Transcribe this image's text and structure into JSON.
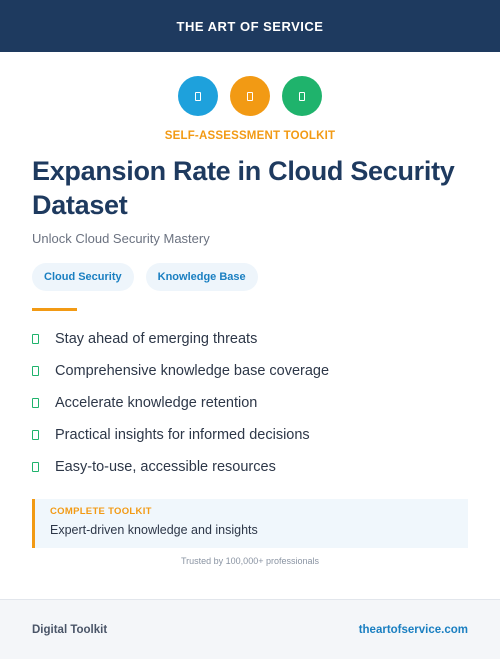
{
  "header": {
    "brand": "THE ART OF SERVICE"
  },
  "icons": [
    {
      "name": "document-icon",
      "color": "#1ea1dc"
    },
    {
      "name": "document-icon",
      "color": "#f29a14"
    },
    {
      "name": "document-icon",
      "color": "#1fb36c"
    }
  ],
  "eyebrow": "SELF-ASSESSMENT TOOLKIT",
  "title": "Expansion Rate in Cloud Security Dataset",
  "subtitle": "Unlock Cloud Security Mastery",
  "tags": [
    "Cloud Security",
    "Knowledge Base"
  ],
  "features": [
    "Stay ahead of emerging threats",
    "Comprehensive knowledge base coverage",
    "Accelerate knowledge retention",
    "Practical insights for informed decisions",
    "Easy-to-use, accessible resources"
  ],
  "callout": {
    "label": "COMPLETE TOOLKIT",
    "text": "Expert-driven knowledge and insights"
  },
  "trusted": "Trusted by 100,000+ professionals",
  "footer": {
    "left": "Digital Toolkit",
    "right": "theartofservice.com"
  },
  "colors": {
    "header_bg": "#1e3a5f",
    "accent_orange": "#f29a14",
    "accent_blue": "#1a7fc1",
    "accent_green": "#1fb36c"
  }
}
